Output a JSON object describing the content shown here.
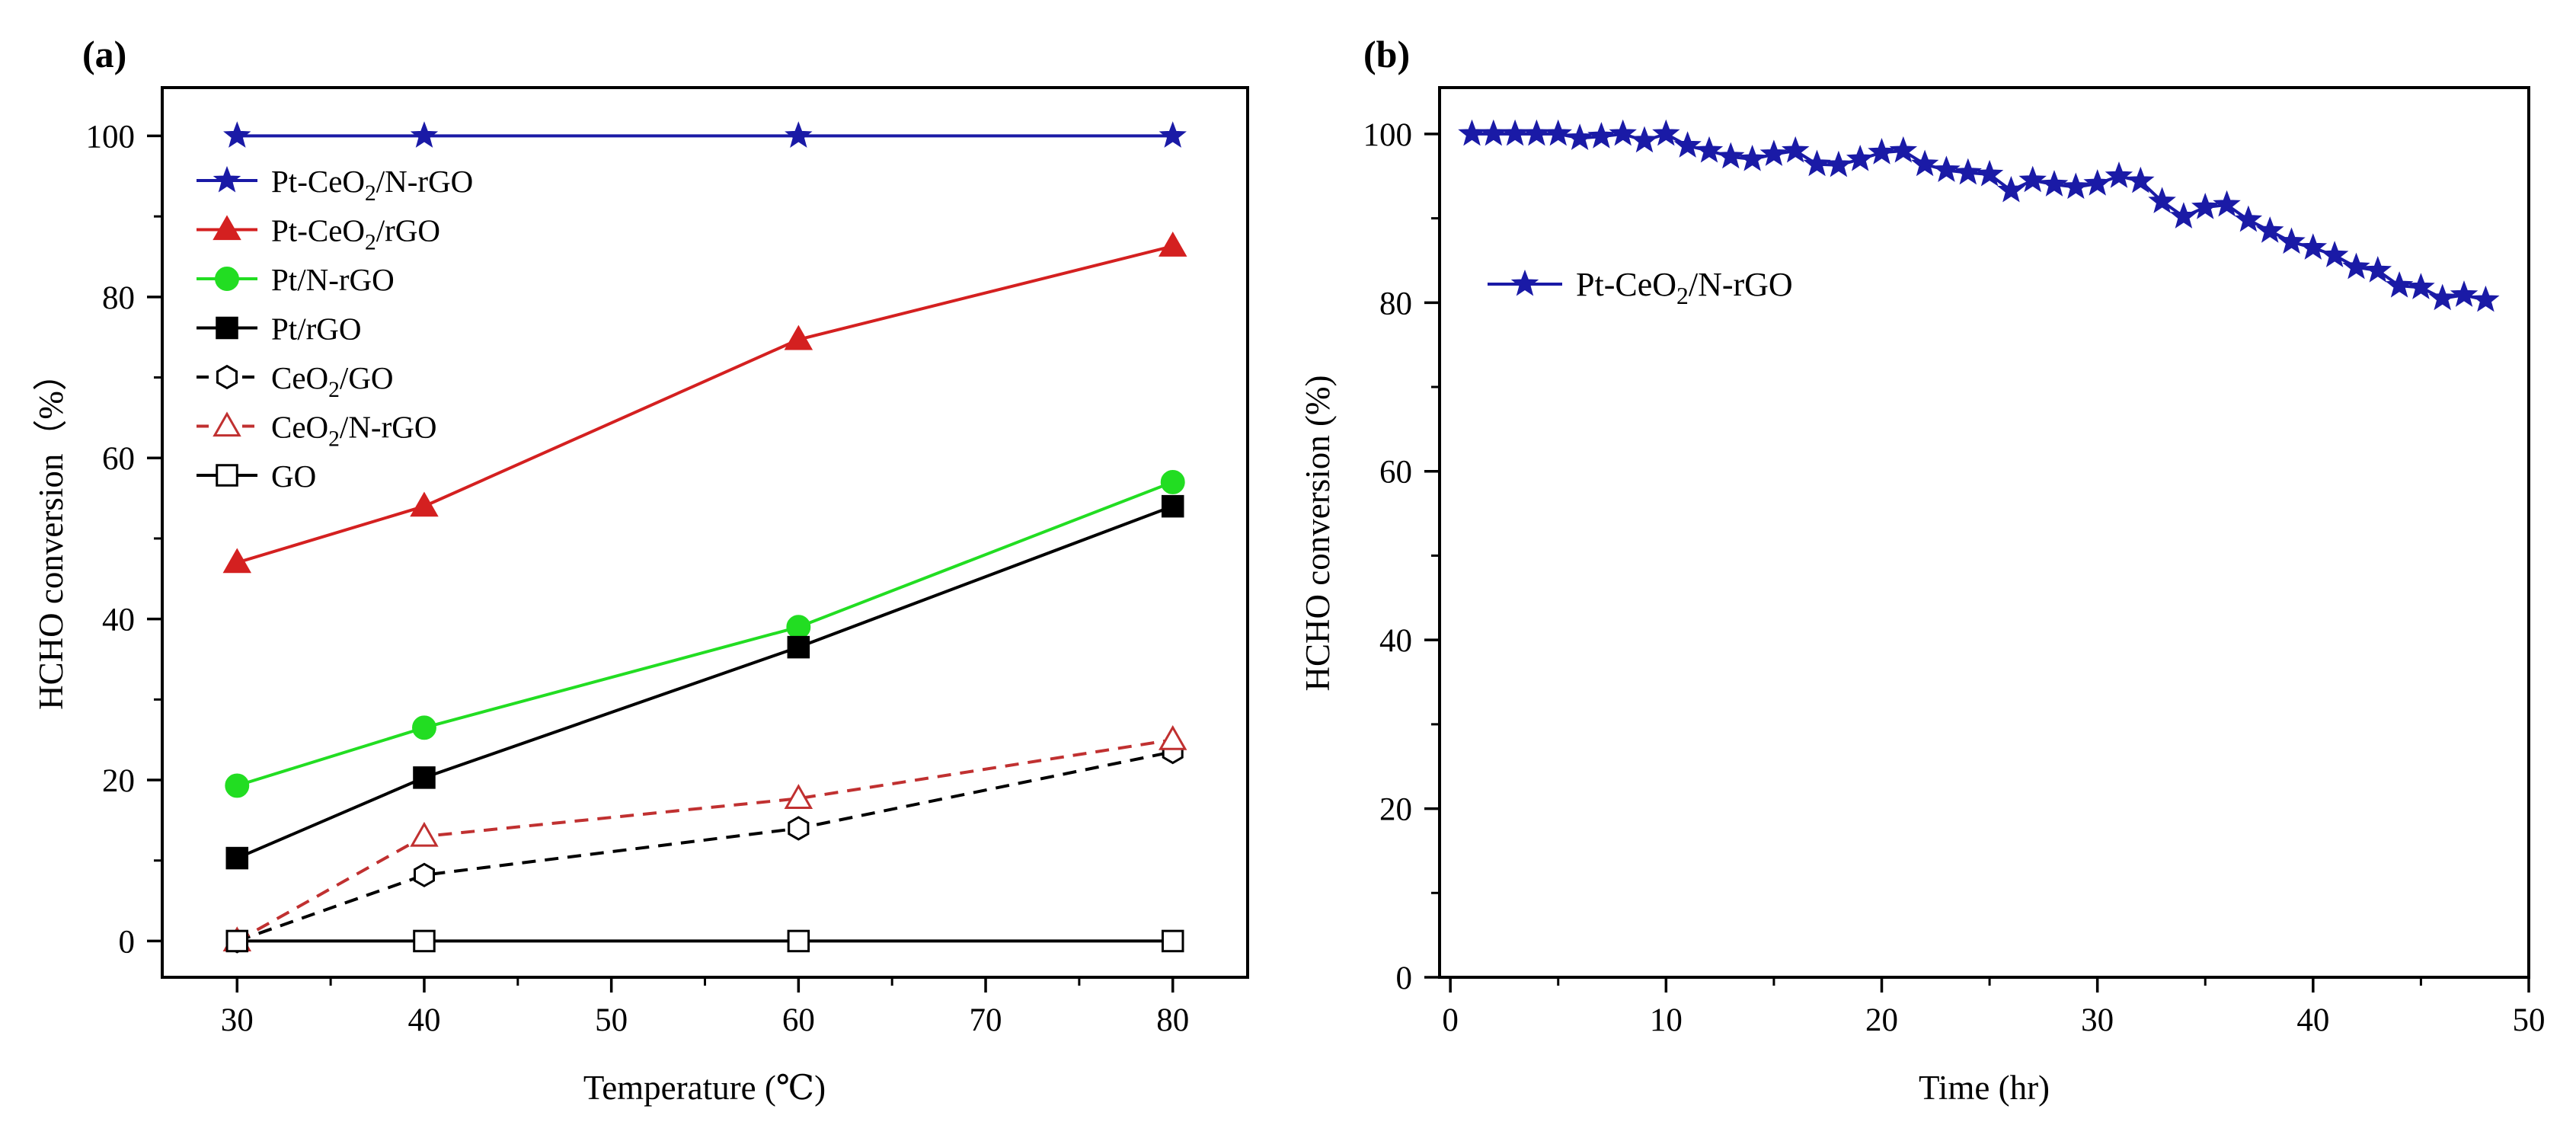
{
  "chart_data": [
    {
      "type": "line",
      "panel_label": "(a)",
      "xlabel": "Temperature (℃)",
      "ylabel": "HCHO conversion（%）",
      "xlim": [
        26,
        84
      ],
      "ylim": [
        -4.5,
        106
      ],
      "x_ticks": [
        "30",
        "40",
        "50",
        "60",
        "70",
        "80"
      ],
      "y_ticks": [
        "0",
        "20",
        "40",
        "60",
        "80",
        "100"
      ],
      "legend_position": "top-left",
      "series": [
        {
          "name": "Pt-CeO2/N-rGO",
          "name_main": "Pt-CeO",
          "name_sub": "2",
          "name_rest": "/N-rGO",
          "color": "#1a1aa6",
          "marker": "star",
          "filled": true,
          "dashed": false,
          "x": [
            30,
            40,
            60,
            80
          ],
          "values": [
            100,
            100,
            100,
            100
          ]
        },
        {
          "name": "Pt-CeO2/rGO",
          "name_main": "Pt-CeO",
          "name_sub": "2",
          "name_rest": "/rGO",
          "color": "#d42020",
          "marker": "triangle",
          "filled": true,
          "dashed": false,
          "x": [
            30,
            40,
            60,
            80
          ],
          "values": [
            47,
            54,
            74.7,
            86.3
          ]
        },
        {
          "name": "Pt/N-rGO",
          "name_main": "Pt/N-rGO",
          "name_sub": "",
          "name_rest": "",
          "color": "#22dd22",
          "marker": "circle",
          "filled": true,
          "dashed": false,
          "x": [
            30,
            40,
            60,
            80
          ],
          "values": [
            19.3,
            26.5,
            39,
            57
          ]
        },
        {
          "name": "Pt/rGO",
          "name_main": "Pt/rGO",
          "name_sub": "",
          "name_rest": "",
          "color": "#000000",
          "marker": "square",
          "filled": true,
          "dashed": false,
          "x": [
            30,
            40,
            60,
            80
          ],
          "values": [
            10.3,
            20.3,
            36.5,
            54
          ]
        },
        {
          "name": "CeO2/GO",
          "name_main": "CeO",
          "name_sub": "2",
          "name_rest": "/GO",
          "color": "#000000",
          "marker": "hexagon",
          "filled": false,
          "dashed": true,
          "x": [
            30,
            40,
            60,
            80
          ],
          "values": [
            0,
            8.2,
            14,
            23.5
          ]
        },
        {
          "name": "CeO2/N-rGO",
          "name_main": "CeO",
          "name_sub": "2",
          "name_rest": "/N-rGO",
          "color": "#c03030",
          "marker": "triangle",
          "filled": false,
          "dashed": true,
          "x": [
            30,
            40,
            60,
            80
          ],
          "values": [
            0,
            13,
            17.7,
            25
          ]
        },
        {
          "name": "GO",
          "name_main": "GO",
          "name_sub": "",
          "name_rest": "",
          "color": "#000000",
          "marker": "square",
          "filled": false,
          "dashed": false,
          "x": [
            30,
            40,
            60,
            80
          ],
          "values": [
            0,
            0,
            0,
            0
          ]
        }
      ]
    },
    {
      "type": "line",
      "panel_label": "(b)",
      "xlabel": "Time (hr)",
      "ylabel": "HCHO conversion (%)",
      "xlim": [
        -0.5,
        50
      ],
      "ylim": [
        0,
        105.5
      ],
      "x_ticks": [
        "0",
        "10",
        "20",
        "30",
        "40",
        "50"
      ],
      "y_ticks": [
        "0",
        "20",
        "40",
        "60",
        "80",
        "100"
      ],
      "legend_position": "upper-left",
      "series": [
        {
          "name": "Pt-CeO2/N-rGO",
          "name_main": "Pt-CeO",
          "name_sub": "2",
          "name_rest": "/N-rGO",
          "color": "#1a1aa6",
          "marker": "star",
          "filled": true,
          "dashed": false,
          "x": [
            1,
            2,
            3,
            4,
            5,
            6,
            7,
            8,
            9,
            10,
            11,
            12,
            13,
            14,
            15,
            16,
            17,
            18,
            19,
            20,
            21,
            22,
            23,
            24,
            25,
            26,
            27,
            28,
            29,
            30,
            31,
            32,
            33,
            34,
            35,
            36,
            37,
            38,
            39,
            40,
            41,
            42,
            43,
            44,
            45,
            46,
            47,
            48
          ],
          "values": [
            100,
            100,
            100,
            100,
            100,
            99.5,
            99.7,
            100,
            99.2,
            100,
            98.6,
            98,
            97.3,
            97,
            97.6,
            98,
            96.4,
            96.3,
            97,
            97.8,
            98,
            96.4,
            95.7,
            95.4,
            95.2,
            93.3,
            94.5,
            94,
            93.7,
            94.1,
            95,
            94.4,
            92,
            90.2,
            91.3,
            91.6,
            89.8,
            88.5,
            87.2,
            86.5,
            85.6,
            84.2,
            83.8,
            82,
            81.8,
            80.5,
            80.9,
            80.3
          ]
        }
      ]
    }
  ]
}
